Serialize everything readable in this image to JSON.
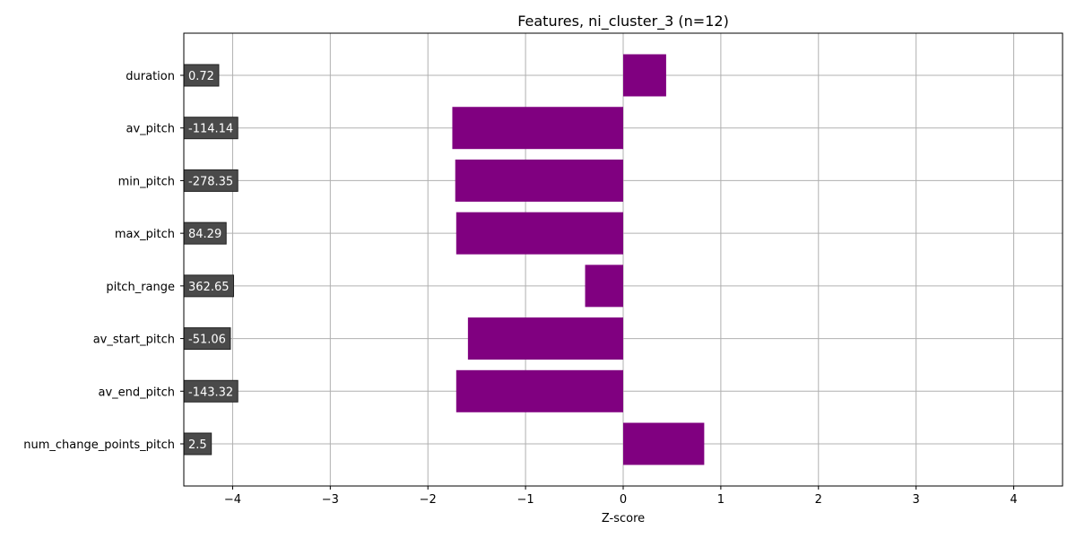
{
  "chart_data": {
    "type": "bar",
    "orientation": "horizontal",
    "title": "Features, ni_cluster_3 (n=12)",
    "xlabel": "Z-score",
    "ylabel": "",
    "xlim": [
      -4.5,
      4.5
    ],
    "xticks": [
      -4,
      -3,
      -2,
      -1,
      0,
      1,
      2,
      3,
      4
    ],
    "xtick_labels": [
      "−4",
      "−3",
      "−2",
      "−1",
      "0",
      "1",
      "2",
      "3",
      "4"
    ],
    "grid": true,
    "categories": [
      "duration",
      "av_pitch",
      "min_pitch",
      "max_pitch",
      "pitch_range",
      "av_start_pitch",
      "av_end_pitch",
      "num_change_points_pitch"
    ],
    "values": [
      0.44,
      -1.75,
      -1.72,
      -1.71,
      -0.39,
      -1.59,
      -1.71,
      0.83
    ],
    "value_labels": [
      "0.72",
      "-114.14",
      "-278.35",
      "84.29",
      "362.65",
      "-51.06",
      "-143.32",
      "2.5"
    ],
    "bar_color": "#800080",
    "label_box_color": "#4a4a4a"
  }
}
